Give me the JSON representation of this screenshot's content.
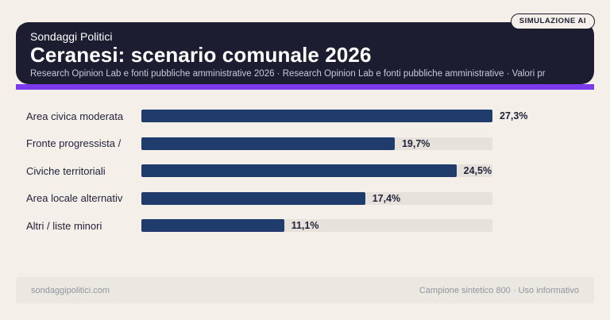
{
  "badge": {
    "label": "SIMULAZIONE AI"
  },
  "header": {
    "kicker": "Sondaggi Politici",
    "title": "Ceranesi: scenario comunale 2026",
    "subtitle": "Research Opinion Lab e fonti pubbliche amministrative 2026 · Research Opinion Lab e fonti pubbliche amministrative · Valori pr"
  },
  "chart_data": {
    "type": "bar",
    "orientation": "horizontal",
    "title": "Ceranesi: scenario comunale 2026",
    "categories": [
      "Area civica moderata",
      "Fronte progressista /",
      "Civiche territoriali",
      "Area locale alternativ",
      "Altri / liste minori"
    ],
    "values": [
      27.3,
      19.7,
      24.5,
      17.4,
      11.1
    ],
    "value_labels": [
      "27,3%",
      "19,7%",
      "24,5%",
      "17,4%",
      "11,1%"
    ],
    "xlim": [
      0,
      27.3
    ],
    "unit": "%",
    "grid": false,
    "legend": false,
    "track_visible": true
  },
  "footer": {
    "left": "sondaggipolitici.com",
    "right": "Campione sintetico 800 · Uso informativo"
  },
  "colors": {
    "page_bg": "#f4f0e9",
    "card_bg": "#1d1d31",
    "accent_purple": "#7c3aed",
    "bar_navy": "#1f3c6d",
    "bar_track": "#e6e2db",
    "label_text": "#23233c",
    "subtitle_text": "#c9c9d6",
    "footer_bg": "#ebe7e1",
    "footer_text": "#9196a1"
  }
}
